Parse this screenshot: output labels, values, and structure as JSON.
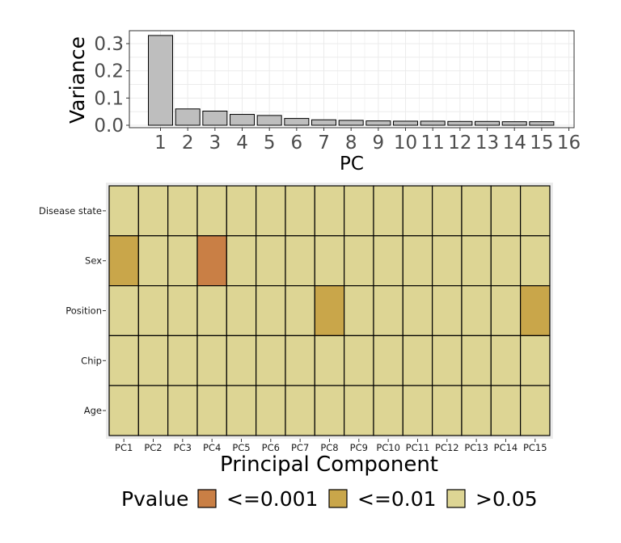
{
  "colors": {
    "bar_fill": "#bebebe",
    "bar_stroke": "#000000",
    "sig_001": "#c97f45",
    "sig_01": "#c9a64a",
    "ns": "#ddd594",
    "grid": "#ebebeb",
    "heat_bg": "#ebebeb"
  },
  "chart_data": [
    {
      "type": "bar",
      "title": "",
      "xlabel": "PC",
      "ylabel": "Variance",
      "categories": [
        "1",
        "2",
        "3",
        "4",
        "5",
        "6",
        "7",
        "8",
        "9",
        "10",
        "11",
        "12",
        "13",
        "14",
        "15"
      ],
      "values": [
        0.33,
        0.06,
        0.052,
        0.04,
        0.036,
        0.025,
        0.02,
        0.018,
        0.016,
        0.015,
        0.015,
        0.014,
        0.014,
        0.013,
        0.013
      ],
      "x_ticks": [
        "1",
        "2",
        "3",
        "4",
        "5",
        "6",
        "7",
        "8",
        "9",
        "10",
        "11",
        "12",
        "13",
        "14",
        "15",
        "16"
      ],
      "y_ticks": [
        "0.0",
        "0.1",
        "0.2",
        "0.3"
      ],
      "ylim": [
        0,
        0.34
      ],
      "grid": true
    },
    {
      "type": "heatmap",
      "xlabel": "Principal Component",
      "x": [
        "PC1",
        "PC2",
        "PC3",
        "PC4",
        "PC5",
        "PC6",
        "PC7",
        "PC8",
        "PC9",
        "PC10",
        "PC11",
        "PC12",
        "PC13",
        "PC14",
        "PC15"
      ],
      "y": [
        "Disease state",
        "Sex",
        "Position",
        "Chip",
        "Age"
      ],
      "values": [
        [
          ">0.05",
          ">0.05",
          ">0.05",
          ">0.05",
          ">0.05",
          ">0.05",
          ">0.05",
          ">0.05",
          ">0.05",
          ">0.05",
          ">0.05",
          ">0.05",
          ">0.05",
          ">0.05",
          ">0.05"
        ],
        [
          "<=0.01",
          ">0.05",
          ">0.05",
          "<=0.001",
          ">0.05",
          ">0.05",
          ">0.05",
          ">0.05",
          ">0.05",
          ">0.05",
          ">0.05",
          ">0.05",
          ">0.05",
          ">0.05",
          ">0.05"
        ],
        [
          ">0.05",
          ">0.05",
          ">0.05",
          ">0.05",
          ">0.05",
          ">0.05",
          ">0.05",
          "<=0.01",
          ">0.05",
          ">0.05",
          ">0.05",
          ">0.05",
          ">0.05",
          ">0.05",
          "<=0.01"
        ],
        [
          ">0.05",
          ">0.05",
          ">0.05",
          ">0.05",
          ">0.05",
          ">0.05",
          ">0.05",
          ">0.05",
          ">0.05",
          ">0.05",
          ">0.05",
          ">0.05",
          ">0.05",
          ">0.05",
          ">0.05"
        ],
        [
          ">0.05",
          ">0.05",
          ">0.05",
          ">0.05",
          ">0.05",
          ">0.05",
          ">0.05",
          ">0.05",
          ">0.05",
          ">0.05",
          ">0.05",
          ">0.05",
          ">0.05",
          ">0.05",
          ">0.05"
        ]
      ],
      "legend": {
        "title": "Pvalue",
        "position": "bottom",
        "entries": [
          "<=0.001",
          "<=0.01",
          ">0.05"
        ]
      }
    }
  ]
}
